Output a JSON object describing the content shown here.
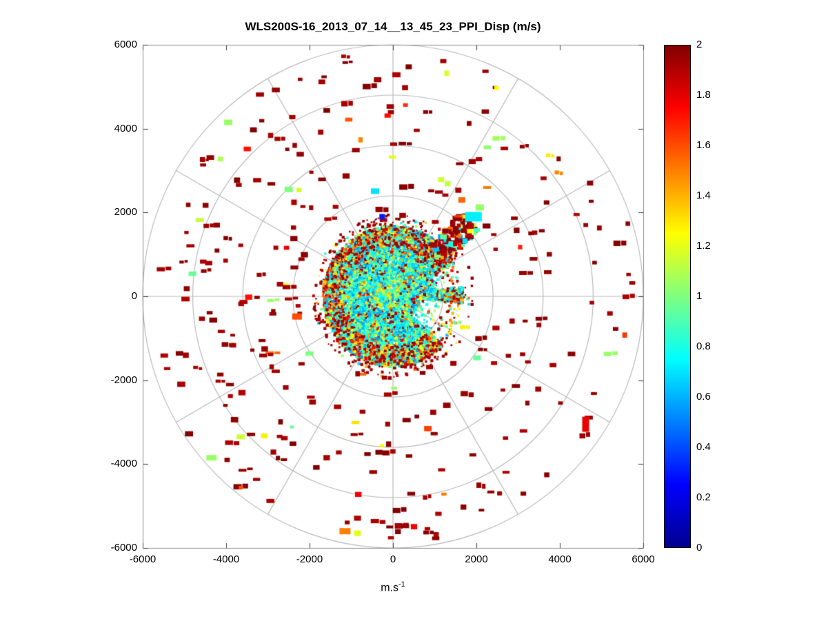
{
  "chart_data": {
    "type": "scatter",
    "title": "WLS200S-16_2013_07_14__13_45_23_PPI_Disp (m/s)",
    "xlabel_base": "m.s",
    "xlabel_exponent": "-1",
    "units": "m/s",
    "xlim": [
      -6000,
      6000
    ],
    "ylim": [
      -6000,
      6000
    ],
    "x_ticks": [
      -6000,
      -4000,
      -2000,
      0,
      2000,
      4000,
      6000
    ],
    "x_tick_labels": [
      "-6000",
      "-4000",
      "-2000",
      "0",
      "2000",
      "4000",
      "6000"
    ],
    "y_ticks": [
      -6000,
      -4000,
      -2000,
      0,
      2000,
      4000,
      6000
    ],
    "y_tick_labels": [
      "-6000",
      "-4000",
      "-2000",
      "0",
      "2000",
      "4000",
      "6000"
    ],
    "grid": {
      "ring_radii": [
        1200,
        2400,
        3600,
        4800,
        6000
      ],
      "dotted_ring_radius": 1575,
      "spoke_step_deg": 30,
      "color": "#b9b9b9",
      "box_color": "#8c8c8c",
      "tick_color": "#3c3c3c"
    },
    "colorbar": {
      "min": 0,
      "max": 2,
      "ticks": [
        0,
        0.2,
        0.4,
        0.6,
        0.8,
        1,
        1.2,
        1.4,
        1.6,
        1.8,
        2
      ],
      "tick_labels": [
        "0",
        "0.2",
        "0.4",
        "0.6",
        "0.8",
        "1",
        "1.2",
        "1.4",
        "1.6",
        "1.8",
        "2"
      ],
      "colormap": [
        {
          "pos": 0,
          "color": "#00008f"
        },
        {
          "pos": 0.125,
          "color": "#0000ff"
        },
        {
          "pos": 0.375,
          "color": "#00ffff"
        },
        {
          "pos": 0.625,
          "color": "#ffff00"
        },
        {
          "pos": 0.875,
          "color": "#ff0000"
        },
        {
          "pos": 1,
          "color": "#800000"
        }
      ]
    },
    "scatter": {
      "seed": 1337,
      "core": {
        "count": 11000,
        "r_max": 1680,
        "dot_size": [
          2.5,
          4.5
        ],
        "value_mix": [
          [
            0.55,
            0.92,
            0.62
          ],
          [
            0.92,
            1.25,
            0.2
          ],
          [
            1.25,
            1.72,
            0.08
          ],
          [
            1.78,
            2.0,
            0.1
          ]
        ]
      },
      "gaps": [
        {
          "a1": -44,
          "a2": -6,
          "r_min": 650
        },
        {
          "a1": 8,
          "a2": 28,
          "r_min": 1050
        }
      ],
      "edge_halo": {
        "count": 800,
        "r_min": 1180,
        "r_max": 1950,
        "dot_size": [
          2,
          4.5
        ],
        "dark_fraction": 0.82
      },
      "plume": {
        "angle_deg": 44,
        "spread_deg": 8,
        "r_min": 1450,
        "r_max": 2600,
        "count": 110,
        "dark_fraction": 0.62
      },
      "outer": {
        "count": 290,
        "r_min": 1750,
        "r_max": 5900,
        "w": [
          6,
          12
        ],
        "h": [
          4,
          8
        ],
        "dark_fraction": 0.85
      },
      "patches": [
        {
          "x": 1930,
          "y": 1900,
          "w": 24,
          "h": 14,
          "value": 0.72
        },
        {
          "x": 2080,
          "y": 2120,
          "w": 12,
          "h": 9,
          "value": 1.05
        },
        {
          "x": 1650,
          "y": 2300,
          "w": 10,
          "h": 8,
          "value": 1.55
        },
        {
          "x": -4350,
          "y": -3850,
          "w": 15,
          "h": 8,
          "value": 1.05
        },
        {
          "x": -3650,
          "y": -3350,
          "w": 12,
          "h": 7,
          "value": 1.15
        },
        {
          "x": -1150,
          "y": -5600,
          "w": 16,
          "h": 9,
          "value": 1.5
        },
        {
          "x": -850,
          "y": -5650,
          "w": 10,
          "h": 8,
          "value": 1.2
        },
        {
          "x": 4620,
          "y": -3050,
          "w": 10,
          "h": 22,
          "value": 1.8
        },
        {
          "x": -2500,
          "y": 2550,
          "w": 12,
          "h": 8,
          "value": 1.0
        },
        {
          "x": -3950,
          "y": 4150,
          "w": 12,
          "h": 8,
          "value": 1.05
        },
        {
          "x": -2300,
          "y": -480,
          "w": 14,
          "h": 9,
          "value": 1.6
        },
        {
          "x": -430,
          "y": 2510,
          "w": 12,
          "h": 8,
          "value": 0.7
        },
        {
          "x": -260,
          "y": 1900,
          "w": 8,
          "h": 8,
          "value": 0.3
        }
      ]
    }
  }
}
